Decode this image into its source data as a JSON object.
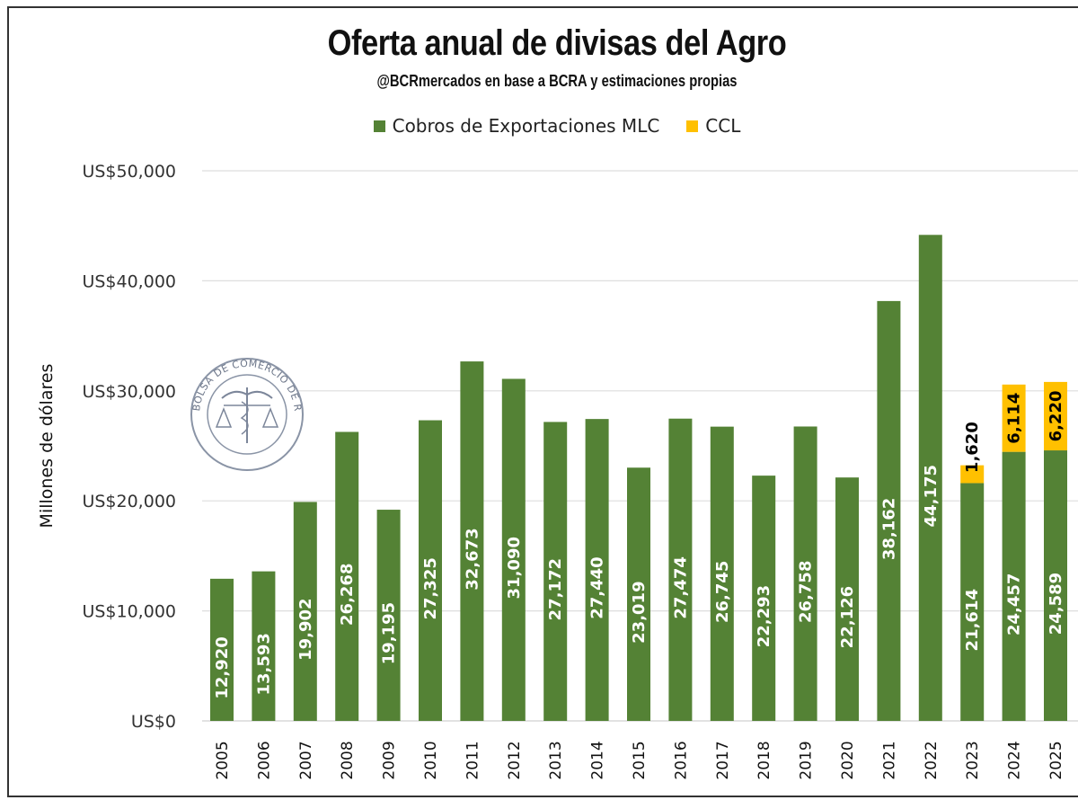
{
  "chart_data": {
    "type": "bar",
    "stacked": true,
    "title": "Oferta anual de divisas del Agro",
    "subtitle": "@BCRmercados en base a BCRA y estimaciones propias",
    "xlabel": "",
    "ylabel": "Millones de dólares",
    "ylim": [
      0,
      50000
    ],
    "yticks": [
      0,
      10000,
      20000,
      30000,
      40000,
      50000
    ],
    "ytick_labels": [
      "US$0",
      "US$10,000",
      "US$20,000",
      "US$30,000",
      "US$40,000",
      "US$50,000"
    ],
    "grid": true,
    "legend_position": "top-center",
    "categories": [
      "2005",
      "2006",
      "2007",
      "2008",
      "2009",
      "2010",
      "2011",
      "2012",
      "2013",
      "2014",
      "2015",
      "2016",
      "2017",
      "2018",
      "2019",
      "2020",
      "2021",
      "2022",
      "2023",
      "2024",
      "2025"
    ],
    "series": [
      {
        "name": "Cobros de Exportaciones MLC",
        "color": "#548235",
        "label_color": "#ffffff",
        "values": [
          12920,
          13593,
          19902,
          26268,
          19195,
          27325,
          32673,
          31090,
          27172,
          27440,
          23019,
          27474,
          26745,
          22293,
          26758,
          22126,
          38162,
          44175,
          21614,
          24457,
          24589
        ],
        "labels": [
          "12,920",
          "13,593",
          "19,902",
          "26,268",
          "19,195",
          "27,325",
          "32,673",
          "31,090",
          "27,172",
          "27,440",
          "23,019",
          "27,474",
          "26,745",
          "22,293",
          "26,758",
          "22,126",
          "38,162",
          "44,175",
          "21,614",
          "24,457",
          "24,589"
        ]
      },
      {
        "name": "CCL",
        "color": "#FFC000",
        "label_color": "#000000",
        "values": [
          null,
          null,
          null,
          null,
          null,
          null,
          null,
          null,
          null,
          null,
          null,
          null,
          null,
          null,
          null,
          null,
          null,
          null,
          1620,
          6114,
          6220
        ],
        "labels": [
          null,
          null,
          null,
          null,
          null,
          null,
          null,
          null,
          null,
          null,
          null,
          null,
          null,
          null,
          null,
          null,
          null,
          null,
          "1,620",
          "6,114",
          "6,220"
        ]
      }
    ]
  },
  "watermark": {
    "name": "Bolsa de Comercio de Rosario seal",
    "text": "BOLSA DE COMERCIO DE ROSARIO"
  }
}
